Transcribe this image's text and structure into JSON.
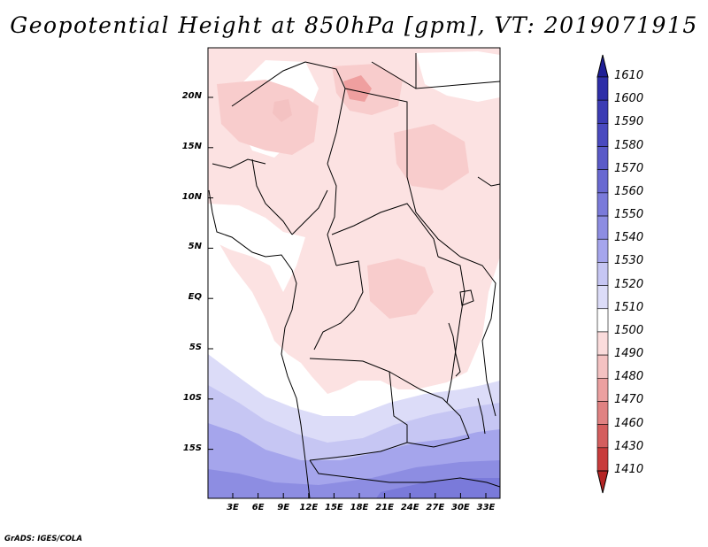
{
  "title": "Geopotential Height at 850hPa [gpm], VT: 2019071915",
  "credit": "GrADS: IGES/COLA",
  "lat_labels": [
    "20N",
    "15N",
    "10N",
    "5N",
    "EQ",
    "5S",
    "10S",
    "15S"
  ],
  "lon_labels": [
    "3E",
    "6E",
    "9E",
    "12E",
    "15E",
    "18E",
    "21E",
    "24E",
    "27E",
    "30E",
    "33E"
  ],
  "colorbar": {
    "labels": [
      "1610",
      "1600",
      "1590",
      "1580",
      "1570",
      "1560",
      "1550",
      "1540",
      "1530",
      "1520",
      "1510",
      "1500",
      "1490",
      "1480",
      "1470",
      "1460",
      "1430",
      "1410"
    ],
    "colors_top_to_bottom": [
      "#1e1e96",
      "#2e2ea8",
      "#3c3cb4",
      "#4a4abf",
      "#5a5ac8",
      "#6969d1",
      "#7a7ada",
      "#8d8de2",
      "#a5a5ec",
      "#c6c6f3",
      "#dcdcf8",
      "#ffffff",
      "#fbdcdc",
      "#f4c2c2",
      "#eba0a0",
      "#e08282",
      "#d45e5e",
      "#c83c3c",
      "#b52424"
    ]
  },
  "map": {
    "lon_range": [
      0,
      35
    ],
    "lat_range": [
      -20,
      24.5
    ],
    "fill_colors": {
      "pale_pink": "#fce2e2",
      "pink": "#f8cccc",
      "rose": "#ef9f9f",
      "white": "#ffffff",
      "pale_blue": "#dcdcf8",
      "light_blue": "#c6c6f3",
      "blue": "#a5a5ec",
      "mid_blue": "#8d8de2",
      "deep_blue": "#7a7ada"
    }
  }
}
